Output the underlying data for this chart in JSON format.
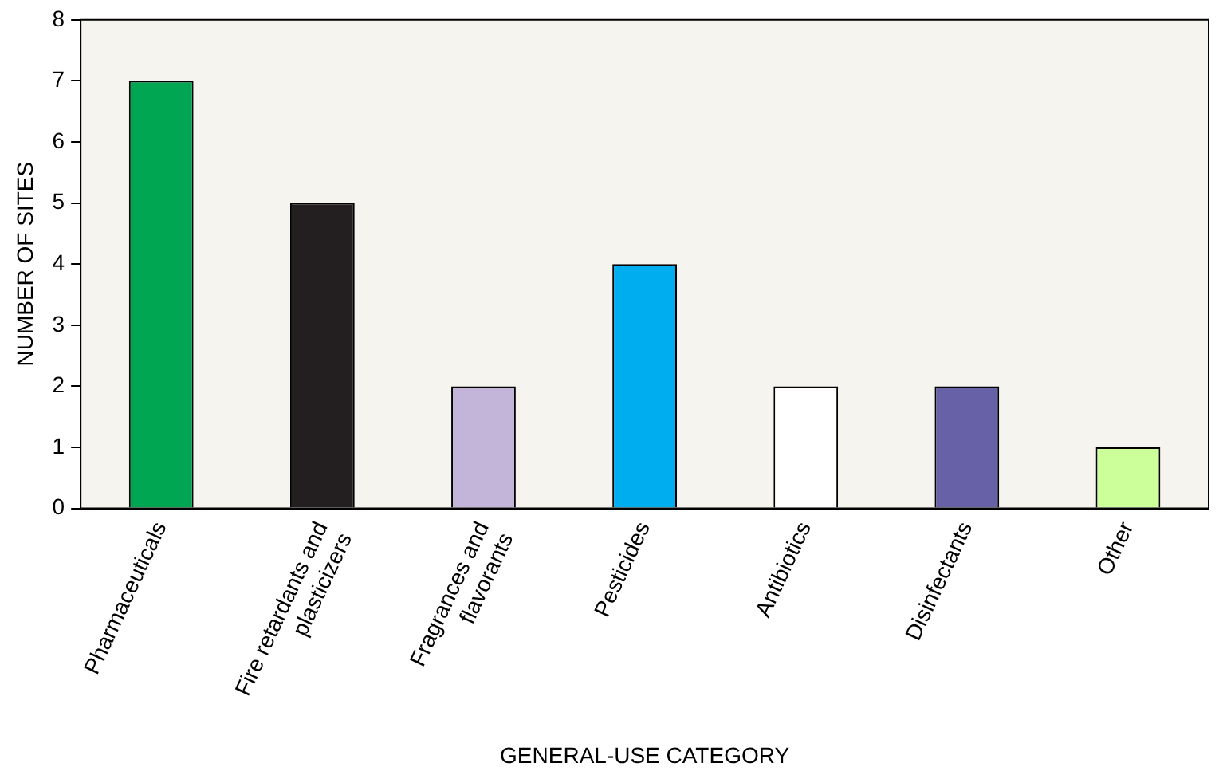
{
  "chart_data": {
    "type": "bar",
    "xlabel": "GENERAL-USE CATEGORY",
    "ylabel": "NUMBER OF SITES",
    "categories": [
      "Pharmaceuticals",
      "Fire retardants and plasticizers",
      "Fragrances and flavorants",
      "Pesticides",
      "Antibiotics",
      "Disinfectants",
      "Other"
    ],
    "values": [
      7,
      5,
      2,
      4,
      2,
      2,
      1
    ],
    "colors": [
      "#00a651",
      "#231f20",
      "#c3b5d9",
      "#00aeef",
      "#ffffff",
      "#6761a8",
      "#ccff99"
    ],
    "ylim": [
      0,
      8
    ],
    "yticks": [
      0,
      1,
      2,
      3,
      4,
      5,
      6,
      7,
      8
    ],
    "grid": false,
    "legend": false
  }
}
